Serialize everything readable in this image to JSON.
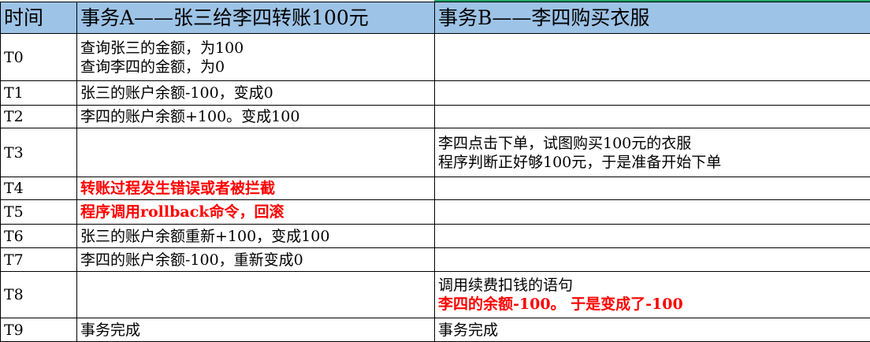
{
  "headers": [
    "时间",
    "事务A——张三给李四转账100元",
    "事务B——李四购买衣服"
  ],
  "colors": {
    "header_bg": "#9dc3e6",
    "highlight_text": "#ff0000"
  },
  "rows": [
    {
      "time": "T0",
      "a": [
        "查询张三的金额，为100",
        "查询李四的金额，为0"
      ],
      "b": [],
      "a_red": false,
      "b_red": []
    },
    {
      "time": "T1",
      "a": [
        "张三的账户余额-100，变成0"
      ],
      "b": [],
      "a_red": false,
      "b_red": []
    },
    {
      "time": "T2",
      "a": [
        "李四的账户余额+100。变成100"
      ],
      "b": [],
      "a_red": false,
      "b_red": []
    },
    {
      "time": "T3",
      "a": [],
      "b": [
        "李四点击下单，试图购买100元的衣服",
        "程序判断正好够100元，于是准备开始下单"
      ],
      "a_red": false,
      "b_red": []
    },
    {
      "time": "T4",
      "a": [
        "转账过程发生错误或者被拦截"
      ],
      "b": [],
      "a_red": true,
      "b_red": []
    },
    {
      "time": "T5",
      "a": [
        "程序调用rollback命令，回滚"
      ],
      "b": [],
      "a_red": true,
      "b_red": []
    },
    {
      "time": "T6",
      "a": [
        "张三的账户余额重新+100，变成100"
      ],
      "b": [],
      "a_red": false,
      "b_red": []
    },
    {
      "time": "T7",
      "a": [
        "李四的账户余额-100，重新变成0"
      ],
      "b": [],
      "a_red": false,
      "b_red": []
    },
    {
      "time": "T8",
      "a": [],
      "b": [
        "调用续费扣钱的语句",
        "李四的余额-100。 于是变成了-100"
      ],
      "a_red": false,
      "b_red": [
        1
      ]
    },
    {
      "time": "T9",
      "a": [
        "事务完成"
      ],
      "b": [
        "事务完成"
      ],
      "a_red": false,
      "b_red": []
    }
  ]
}
